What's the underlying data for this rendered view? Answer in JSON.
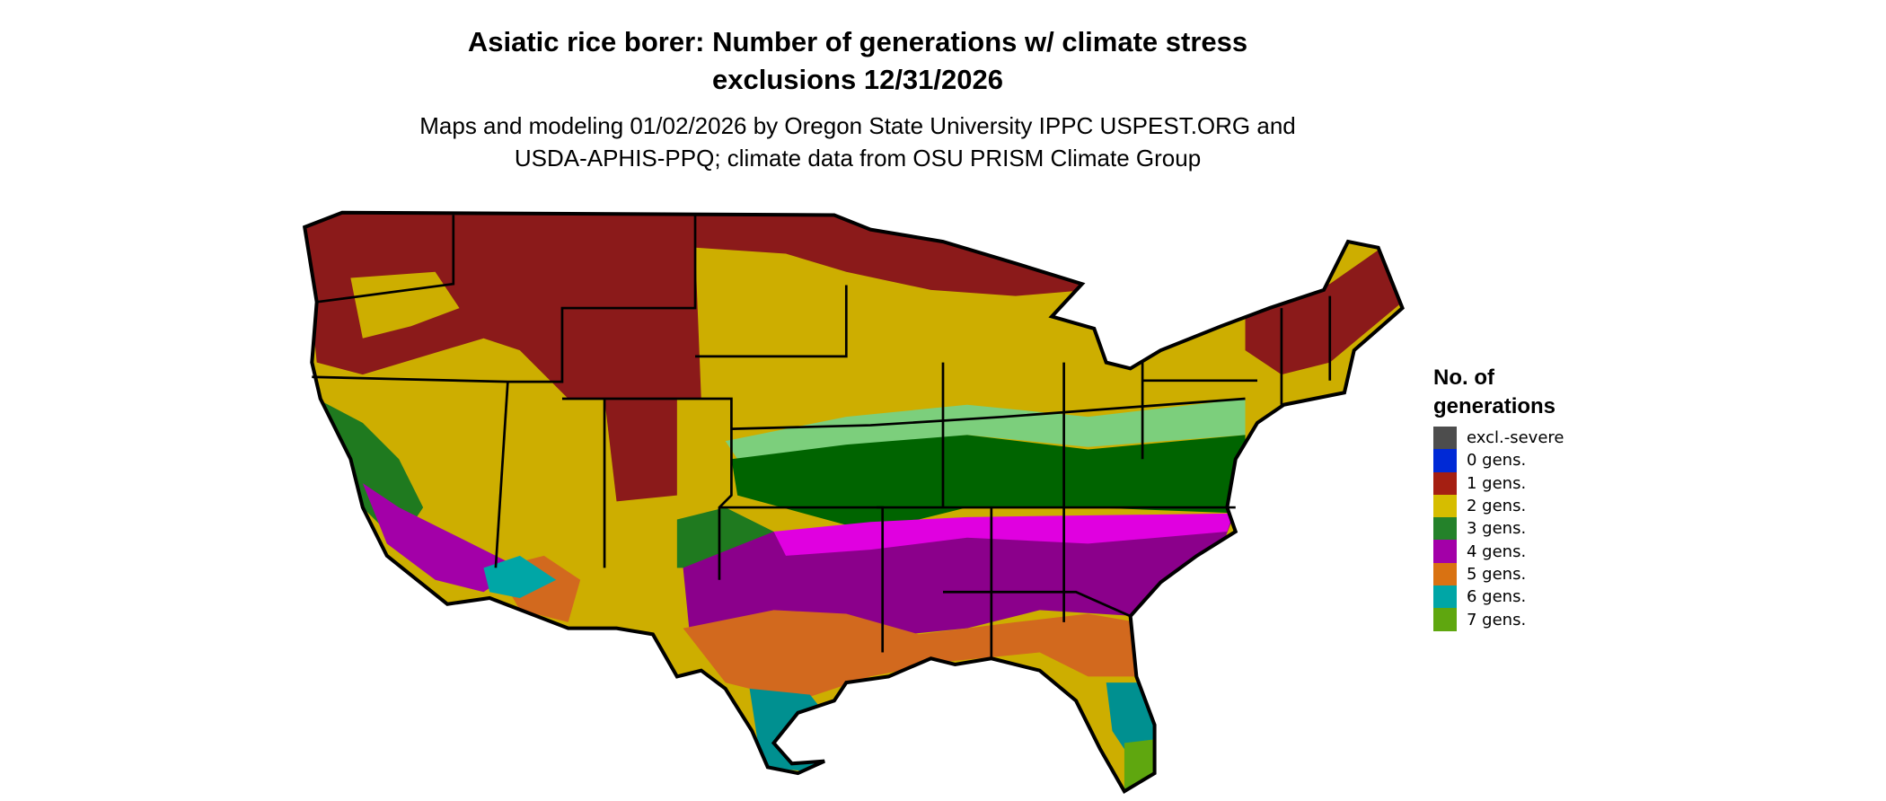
{
  "title_line1": "Asiatic rice borer: Number of generations w/ climate stress",
  "title_line2": "exclusions 12/31/2026",
  "subtitle_line1": "Maps and modeling 01/02/2026 by Oregon State University IPPC USPEST.ORG and",
  "subtitle_line2": "USDA-APHIS-PPQ; climate data from OSU PRISM Climate Group",
  "legend": {
    "title_line1": "No. of",
    "title_line2": "generations",
    "items": [
      {
        "label": "excl.-severe",
        "color": "#4d4d4d"
      },
      {
        "label": "0 gens.",
        "color": "#0029d6"
      },
      {
        "label": "1 gens.",
        "color": "#a51f12"
      },
      {
        "label": "2 gens.",
        "color": "#d6bd00"
      },
      {
        "label": "3 gens.",
        "color": "#24822a"
      },
      {
        "label": "4 gens.",
        "color": "#a300a8"
      },
      {
        "label": "5 gens.",
        "color": "#d97212"
      },
      {
        "label": "6 gens.",
        "color": "#00a6a6"
      },
      {
        "label": "7 gens.",
        "color": "#5fa70f"
      }
    ]
  },
  "chart_data": {
    "type": "map",
    "region": "Contiguous United States",
    "variable": "Number of generations",
    "date": "12/31/2026",
    "categories": [
      "excl.-severe",
      "0 gens.",
      "1 gens.",
      "2 gens.",
      "3 gens.",
      "4 gens.",
      "5 gens.",
      "6 gens.",
      "7 gens."
    ],
    "legend_position": "right"
  }
}
